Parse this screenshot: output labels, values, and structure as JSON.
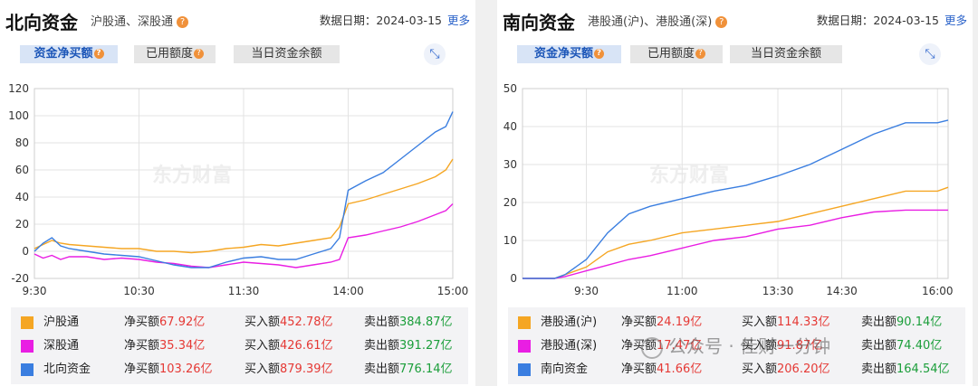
{
  "panels": [
    {
      "title": "北向资金",
      "subtitle": "沪股通、深股通",
      "date_label": "数据日期：2024-03-15",
      "more": "更多",
      "tabs": [
        "资金净买额",
        "已用额度",
        "当日资金余额"
      ],
      "active_tab": 0,
      "watermark": "东方财富",
      "legend": [
        {
          "name": "沪股通",
          "color": "#f5a623",
          "net_label": "净买额",
          "net": "67.92亿",
          "buy_label": "买入额",
          "buy": "452.78亿",
          "sell_label": "卖出额",
          "sell": "384.87亿"
        },
        {
          "name": "深股通",
          "color": "#e91ee3",
          "net_label": "净买额",
          "net": "35.34亿",
          "buy_label": "买入额",
          "buy": "426.61亿",
          "sell_label": "卖出额",
          "sell": "391.27亿"
        },
        {
          "name": "北向资金",
          "color": "#3a7ee0",
          "net_label": "净买额",
          "net": "103.26亿",
          "buy_label": "买入额",
          "buy": "879.39亿",
          "sell_label": "卖出额",
          "sell": "776.14亿"
        }
      ]
    },
    {
      "title": "南向资金",
      "subtitle": "港股通(沪)、港股通(深)",
      "date_label": "数据日期：2024-03-15",
      "more": "更多",
      "tabs": [
        "资金净买额",
        "已用额度",
        "当日资金余额"
      ],
      "active_tab": 0,
      "watermark": "东方财富",
      "legend": [
        {
          "name": "港股通(沪)",
          "color": "#f5a623",
          "net_label": "净买额",
          "net": "24.19亿",
          "buy_label": "买入额",
          "buy": "114.33亿",
          "sell_label": "卖出额",
          "sell": "90.14亿"
        },
        {
          "name": "港股通(深)",
          "color": "#e91ee3",
          "net_label": "净买额",
          "net": "17.47亿",
          "buy_label": "买入额",
          "buy": "91.87亿",
          "sell_label": "卖出额",
          "sell": "74.40亿"
        },
        {
          "name": "南向资金",
          "color": "#3a7ee0",
          "net_label": "净买额",
          "net": "41.66亿",
          "buy_label": "买入额",
          "buy": "206.20亿",
          "sell_label": "卖出额",
          "sell": "164.54亿"
        }
      ]
    }
  ],
  "overlay_watermark": "公众号 · 佳财一分钟",
  "chart_data": [
    {
      "type": "line",
      "xlabels": [
        "9:30",
        "10:30",
        "11:30",
        "14:00",
        "15:00"
      ],
      "xticks_min": [
        0,
        60,
        120,
        180,
        240
      ],
      "xrange": [
        0,
        240
      ],
      "ylim": [
        -20,
        120
      ],
      "yticks": [
        -20,
        0,
        20,
        40,
        60,
        80,
        100,
        120
      ],
      "grid": true,
      "series": [
        {
          "name": "沪股通",
          "color": "#f5a623",
          "x": [
            0,
            5,
            10,
            15,
            20,
            30,
            40,
            50,
            60,
            70,
            80,
            90,
            100,
            110,
            120,
            130,
            140,
            150,
            160,
            170,
            175,
            180,
            190,
            200,
            210,
            220,
            230,
            236,
            240
          ],
          "y": [
            2,
            5,
            8,
            6,
            5,
            4,
            3,
            2,
            2,
            0,
            0,
            -1,
            0,
            2,
            3,
            5,
            4,
            6,
            8,
            10,
            18,
            35,
            38,
            42,
            46,
            50,
            55,
            60,
            68
          ]
        },
        {
          "name": "深股通",
          "color": "#e91ee3",
          "x": [
            0,
            5,
            10,
            15,
            20,
            30,
            40,
            50,
            60,
            70,
            80,
            90,
            100,
            110,
            120,
            130,
            140,
            150,
            160,
            170,
            175,
            180,
            190,
            200,
            210,
            220,
            230,
            236,
            240
          ],
          "y": [
            -2,
            -5,
            -3,
            -6,
            -4,
            -4,
            -6,
            -5,
            -6,
            -8,
            -9,
            -11,
            -12,
            -10,
            -8,
            -9,
            -10,
            -12,
            -10,
            -8,
            -6,
            10,
            12,
            15,
            18,
            22,
            27,
            30,
            35
          ]
        },
        {
          "name": "北向资金",
          "color": "#3a7ee0",
          "x": [
            0,
            5,
            10,
            15,
            20,
            30,
            40,
            50,
            60,
            70,
            80,
            90,
            100,
            110,
            120,
            130,
            140,
            150,
            160,
            170,
            175,
            180,
            190,
            200,
            210,
            220,
            230,
            236,
            240
          ],
          "y": [
            0,
            6,
            10,
            4,
            2,
            0,
            -2,
            -3,
            -4,
            -7,
            -10,
            -12,
            -12,
            -8,
            -5,
            -4,
            -6,
            -6,
            -2,
            2,
            10,
            45,
            52,
            58,
            68,
            78,
            88,
            92,
            103
          ]
        }
      ]
    },
    {
      "type": "line",
      "xlabels": [
        "9:30",
        "11:00",
        "13:30",
        "14:30",
        "16:00"
      ],
      "xticks_min": [
        0,
        90,
        180,
        240,
        330
      ],
      "xrange": [
        -60,
        340
      ],
      "ylim": [
        0,
        50
      ],
      "yticks": [
        0,
        10,
        20,
        30,
        40,
        50
      ],
      "grid": true,
      "series": [
        {
          "name": "港股通(沪)",
          "color": "#f5a623",
          "x": [
            -60,
            -30,
            -20,
            0,
            20,
            40,
            60,
            90,
            120,
            150,
            180,
            210,
            240,
            270,
            300,
            330,
            340
          ],
          "y": [
            0,
            0,
            1,
            3,
            7,
            9,
            10,
            12,
            13,
            14,
            15,
            17,
            19,
            21,
            23,
            23,
            24
          ]
        },
        {
          "name": "港股通(深)",
          "color": "#e91ee3",
          "x": [
            -60,
            -30,
            -20,
            0,
            20,
            40,
            60,
            90,
            120,
            150,
            180,
            210,
            240,
            270,
            300,
            330,
            340
          ],
          "y": [
            0,
            0,
            0.5,
            2,
            3.5,
            5,
            6,
            8,
            10,
            11,
            13,
            14,
            16,
            17.5,
            18,
            18,
            18
          ]
        },
        {
          "name": "南向资金",
          "color": "#3a7ee0",
          "x": [
            -60,
            -30,
            -20,
            0,
            20,
            40,
            60,
            90,
            120,
            150,
            180,
            210,
            240,
            270,
            300,
            330,
            340
          ],
          "y": [
            0,
            0,
            1,
            5,
            12,
            17,
            19,
            21,
            23,
            24.5,
            27,
            30,
            34,
            38,
            41,
            41,
            41.7
          ]
        }
      ]
    }
  ]
}
